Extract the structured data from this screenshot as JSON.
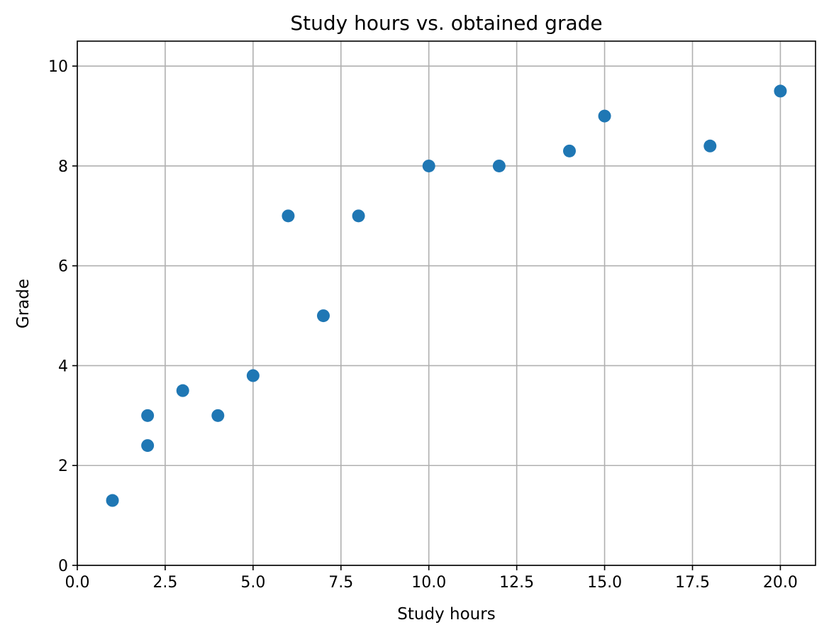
{
  "chart_data": {
    "type": "scatter",
    "title": "Study hours vs. obtained grade",
    "xlabel": "Study hours",
    "ylabel": "Grade",
    "xlim": [
      0,
      21
    ],
    "ylim": [
      0,
      10.5
    ],
    "grid": true,
    "x_ticks": [
      "0.0",
      "2.5",
      "5.0",
      "7.5",
      "10.0",
      "12.5",
      "15.0",
      "17.5",
      "20.0"
    ],
    "y_ticks": [
      "0",
      "2",
      "4",
      "6",
      "8",
      "10"
    ],
    "series": [
      {
        "color": "#1f77b4",
        "points": [
          {
            "x": 1,
            "y": 1.3
          },
          {
            "x": 2,
            "y": 2.4
          },
          {
            "x": 2,
            "y": 3.0
          },
          {
            "x": 3,
            "y": 3.5
          },
          {
            "x": 4,
            "y": 3.0
          },
          {
            "x": 5,
            "y": 3.8
          },
          {
            "x": 6,
            "y": 7.0
          },
          {
            "x": 7,
            "y": 5.0
          },
          {
            "x": 8,
            "y": 7.0
          },
          {
            "x": 10,
            "y": 8.0
          },
          {
            "x": 12,
            "y": 8.0
          },
          {
            "x": 14,
            "y": 8.3
          },
          {
            "x": 15,
            "y": 9.0
          },
          {
            "x": 18,
            "y": 8.4
          },
          {
            "x": 20,
            "y": 9.5
          }
        ]
      }
    ]
  }
}
